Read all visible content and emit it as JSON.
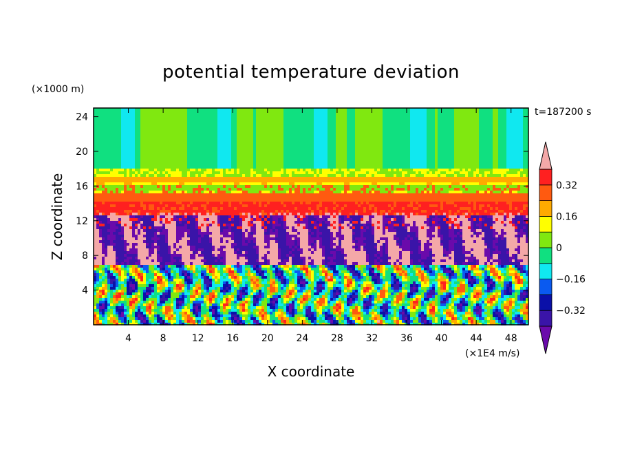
{
  "chart_data": {
    "type": "heatmap",
    "title": "potential temperature deviation",
    "xlabel": "X coordinate",
    "ylabel": "Z coordinate",
    "x_unit": "(×1E4 m/s)",
    "y_unit": "(×1000 m)",
    "time_label": "t=187200 s",
    "xlim": [
      0,
      50
    ],
    "ylim": [
      0,
      25
    ],
    "x_ticks": [
      "4",
      "8",
      "12",
      "16",
      "20",
      "24",
      "28",
      "32",
      "36",
      "40",
      "44",
      "48"
    ],
    "y_ticks": [
      "4",
      "8",
      "12",
      "16",
      "20",
      "24"
    ],
    "x_tick_values": [
      4,
      8,
      12,
      16,
      20,
      24,
      28,
      32,
      36,
      40,
      44,
      48
    ],
    "y_tick_values": [
      4,
      8,
      12,
      16,
      20,
      24
    ],
    "colorbar": {
      "levels": [
        -0.4,
        -0.32,
        -0.24,
        -0.16,
        -0.08,
        0,
        0.08,
        0.16,
        0.24,
        0.32,
        0.4
      ],
      "labels": [
        "0.32",
        "0.16",
        "0",
        "−0.16",
        "−0.32"
      ],
      "label_values": [
        0.32,
        0.16,
        0,
        -0.16,
        -0.32
      ],
      "colors": [
        "#6a0aab",
        "#3a14a8",
        "#0a10a8",
        "#0a5af0",
        "#10e8f0",
        "#10e080",
        "#80e810",
        "#ffff00",
        "#ffaa00",
        "#ff5a10",
        "#ff2020",
        "#f4a8a8"
      ],
      "extend": "both"
    }
  }
}
